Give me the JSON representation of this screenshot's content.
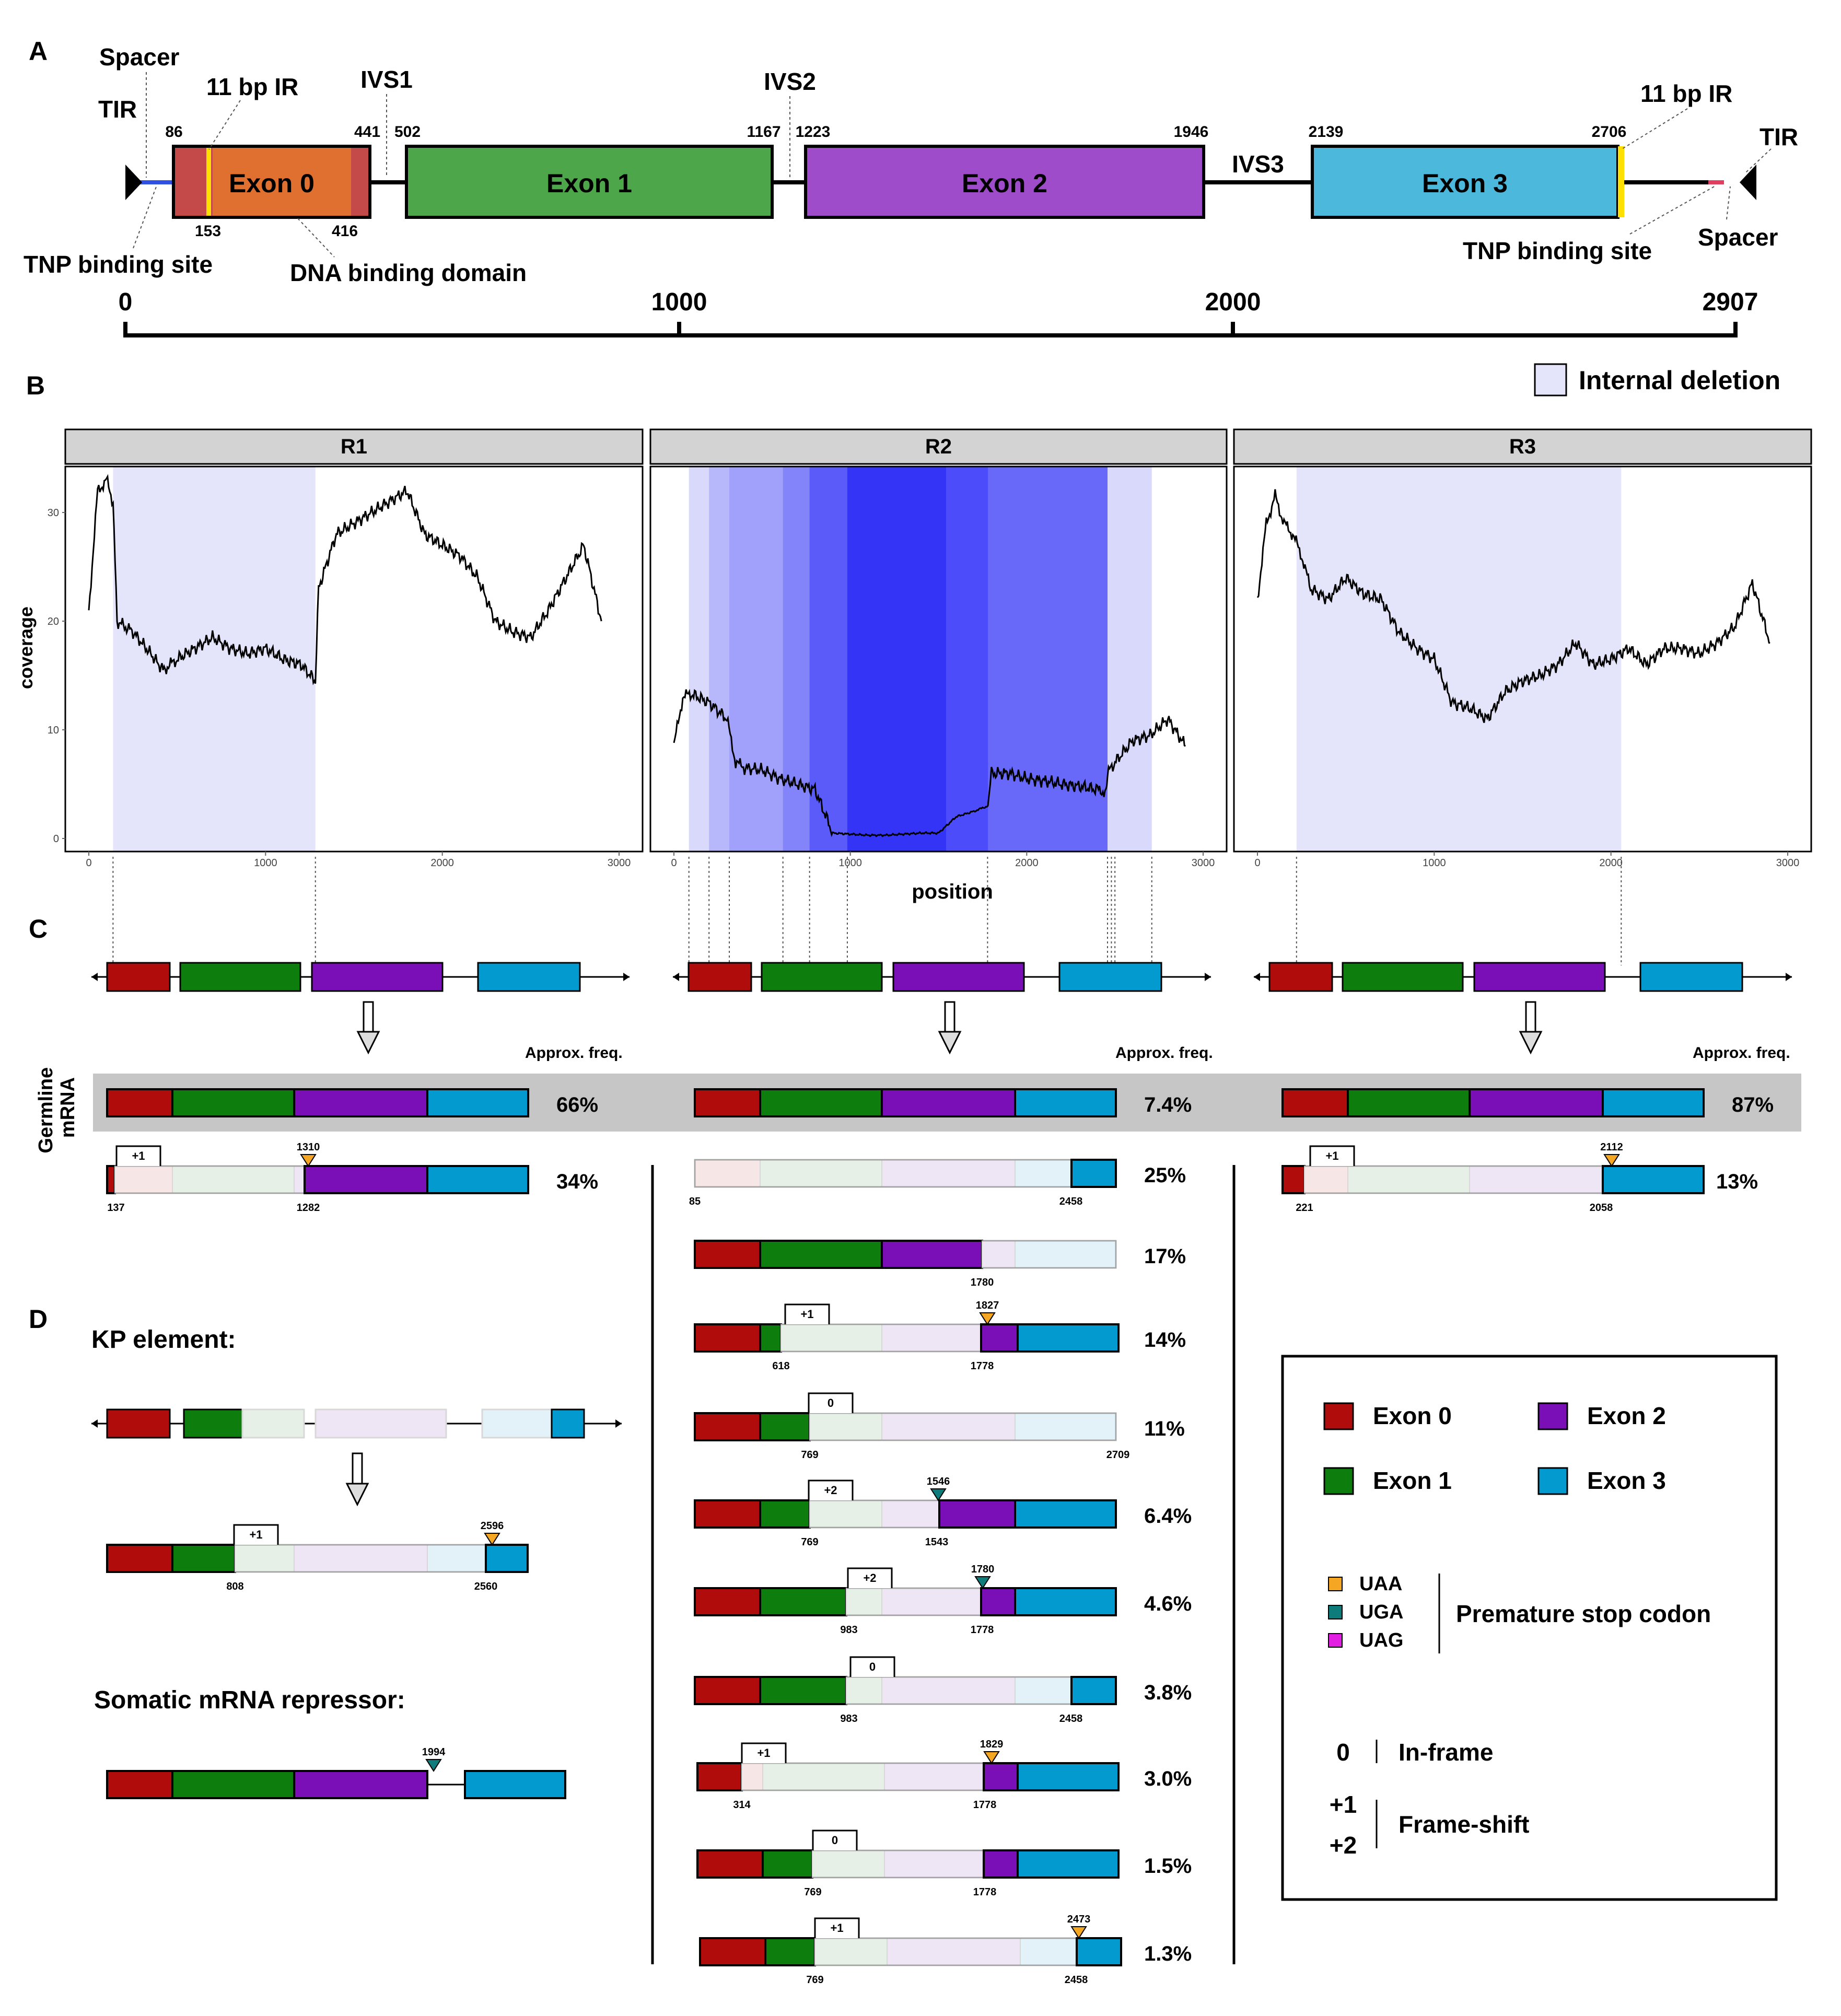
{
  "panel_letters": {
    "a": "A",
    "b": "B",
    "c": "C",
    "d": "D"
  },
  "colors": {
    "exon0": "#b00c0c",
    "exon1": "#0d7d0d",
    "exon2": "#7a0fb8",
    "exon3": "#039ad0",
    "exon0_light": "#f7e6e6",
    "exon1_light": "#e6f0e6",
    "exon2_light": "#efe6f5",
    "exon3_light": "#e3f1f8",
    "a_exon0": "#e07030",
    "a_exon1": "#4ea64a",
    "a_exon2": "#9e4cc9",
    "a_exon3": "#4cb8dc",
    "a_end": "#c44a4a",
    "uaa": "#f5a623",
    "uga": "#0e7c7b",
    "uag": "#e11ee1",
    "deletion": "#e4e4fa"
  },
  "panel_a": {
    "exons": [
      "Exon 0",
      "Exon 1",
      "Exon 2",
      "Exon 3"
    ],
    "introns": [
      "IVS1",
      "IVS2",
      "IVS3"
    ],
    "labels": {
      "tir_left": "TIR",
      "spacer_left": "Spacer",
      "ir_left": "11 bp IR",
      "tnp_left": "TNP binding site",
      "dna_binding": "DNA binding domain",
      "ir_right": "11 bp IR",
      "tir_right": "TIR",
      "tnp_right": "TNP binding site",
      "spacer_right": "Spacer"
    },
    "coords": {
      "c86": "86",
      "c153": "153",
      "c416": "416",
      "c441": "441",
      "c502": "502",
      "c1167": "1167",
      "c1223": "1223",
      "c1946": "1946",
      "c2139": "2139",
      "c2706": "2706"
    },
    "scale": {
      "t0": "0",
      "t1000": "1000",
      "t2000": "2000",
      "t2907": "2907"
    }
  },
  "panel_b": {
    "legend": "Internal deletion",
    "facets": [
      "R1",
      "R2",
      "R3"
    ],
    "ylabel": "coverage",
    "xlabel": "position",
    "yticks": [
      "0",
      "10",
      "20",
      "30"
    ],
    "xticks": [
      "0",
      "1000",
      "2000",
      "3000"
    ]
  },
  "chart_data": {
    "type": "line",
    "xlabel": "position",
    "ylabel": "coverage",
    "xlim": [
      0,
      3000
    ],
    "ylim": [
      0,
      35
    ],
    "facets": [
      {
        "name": "R1",
        "deletion": [
          137,
          1282
        ],
        "x": [
          0,
          50,
          100,
          137,
          160,
          250,
          350,
          420,
          500,
          600,
          700,
          800,
          900,
          1000,
          1100,
          1200,
          1282,
          1300,
          1400,
          1500,
          1600,
          1700,
          1800,
          1900,
          2000,
          2100,
          2200,
          2300,
          2400,
          2500,
          2600,
          2700,
          2800,
          2900
        ],
        "y": [
          21,
          32,
          33,
          31,
          20,
          19,
          17,
          15.5,
          16.5,
          17.5,
          18.5,
          17.5,
          17,
          17.5,
          16.5,
          16,
          14.5,
          23,
          28,
          29,
          30,
          31,
          32,
          28,
          27,
          26,
          24,
          20,
          19,
          18.5,
          21,
          24,
          27,
          20
        ]
      },
      {
        "name": "R2",
        "x": [
          0,
          50,
          100,
          200,
          300,
          350,
          400,
          500,
          600,
          700,
          800,
          900,
          1000,
          1100,
          1200,
          1300,
          1400,
          1500,
          1600,
          1700,
          1780,
          1800,
          1900,
          2000,
          2100,
          2200,
          2300,
          2400,
          2450,
          2458,
          2500,
          2600,
          2700,
          2800,
          2900
        ],
        "y": [
          8.5,
          13,
          13.3,
          12.5,
          11,
          7,
          6.5,
          6.3,
          5.5,
          5,
          4.5,
          0.5,
          0.4,
          0.3,
          0.3,
          0.4,
          0.5,
          0.5,
          2,
          2.5,
          3,
          6,
          6,
          5.5,
          5.3,
          5,
          4.8,
          4.5,
          4.3,
          6,
          7,
          9,
          9.5,
          11,
          8.5
        ]
      },
      {
        "name": "R3",
        "deletion": [
          221,
          2058
        ],
        "x": [
          0,
          50,
          100,
          150,
          200,
          250,
          300,
          400,
          500,
          600,
          700,
          800,
          900,
          1000,
          1100,
          1200,
          1300,
          1400,
          1500,
          1600,
          1700,
          1800,
          1900,
          2000,
          2100,
          2200,
          2300,
          2400,
          2500,
          2600,
          2700,
          2800,
          2900
        ],
        "y": [
          22,
          29,
          31.5,
          29,
          28,
          26,
          23,
          22,
          24,
          22.5,
          22,
          19,
          17.5,
          16.5,
          12.5,
          12,
          11,
          13.5,
          14.5,
          15,
          16,
          18,
          16,
          16.5,
          17.5,
          16,
          17.5,
          17.5,
          17,
          18,
          19.5,
          23.5,
          18
        ]
      }
    ]
  },
  "panel_c": {
    "approx_label": "Approx. freq.",
    "germline_label": "Germline mRNA",
    "germline_freqs": [
      "66%",
      "7.4%",
      "87%"
    ],
    "r1_variant": {
      "freq": "34%",
      "frame": "+1",
      "stop": "1310",
      "left": "137",
      "right": "1282"
    },
    "r3_variant": {
      "freq": "13%",
      "frame": "+1",
      "stop": "2112",
      "left": "221",
      "right": "2058"
    },
    "r2_variants": [
      {
        "freq": "25%",
        "left": "85",
        "right": "2458"
      },
      {
        "freq": "17%",
        "right": "1780"
      },
      {
        "freq": "14%",
        "frame": "+1",
        "stop": "1827",
        "left": "618",
        "right": "1778"
      },
      {
        "freq": "11%",
        "frame": "0",
        "left": "769",
        "right": "2709"
      },
      {
        "freq": "6.4%",
        "frame": "+2",
        "stop": "1546",
        "left": "769",
        "right": "1543"
      },
      {
        "freq": "4.6%",
        "frame": "+2",
        "stop": "1780",
        "left": "983",
        "right": "1778"
      },
      {
        "freq": "3.8%",
        "frame": "0",
        "left": "983",
        "right": "2458"
      },
      {
        "freq": "3.0%",
        "frame": "+1",
        "stop": "1829",
        "left": "314",
        "right": "1778"
      },
      {
        "freq": "1.5%",
        "frame": "0",
        "left": "769",
        "right": "1778"
      },
      {
        "freq": "1.3%",
        "frame": "+1",
        "stop": "2473",
        "left": "769",
        "right": "2458"
      }
    ]
  },
  "panel_d": {
    "kp_title": "KP element:",
    "kp": {
      "frame": "+1",
      "stop": "2596",
      "left": "808",
      "right": "2560"
    },
    "repressor_title": "Somatic mRNA repressor:",
    "repressor_stop": "1994"
  },
  "legend": {
    "exons": [
      "Exon 0",
      "Exon 1",
      "Exon 2",
      "Exon 3"
    ],
    "codons": [
      "UAA",
      "UGA",
      "UAG"
    ],
    "stop_label": "Premature stop codon",
    "inframe_sym": "0",
    "inframe_label": "In-frame",
    "shift_sym1": "+1",
    "shift_sym2": "+2",
    "shift_label": "Frame-shift"
  }
}
